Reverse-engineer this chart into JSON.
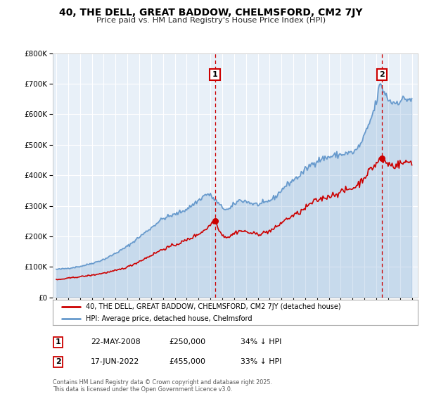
{
  "title": "40, THE DELL, GREAT BADDOW, CHELMSFORD, CM2 7JY",
  "subtitle": "Price paid vs. HM Land Registry's House Price Index (HPI)",
  "legend_line1": "40, THE DELL, GREAT BADDOW, CHELMSFORD, CM2 7JY (detached house)",
  "legend_line2": "HPI: Average price, detached house, Chelmsford",
  "footer": "Contains HM Land Registry data © Crown copyright and database right 2025.\nThis data is licensed under the Open Government Licence v3.0.",
  "annotation1_label": "1",
  "annotation1_date": "22-MAY-2008",
  "annotation1_price": "£250,000",
  "annotation1_hpi": "34% ↓ HPI",
  "annotation2_label": "2",
  "annotation2_date": "17-JUN-2022",
  "annotation2_price": "£455,000",
  "annotation2_hpi": "33% ↓ HPI",
  "marker1_x": 2008.38,
  "marker1_y": 250000,
  "marker2_x": 2022.46,
  "marker2_y": 455000,
  "red_color": "#cc0000",
  "blue_color": "#6699cc",
  "marker_box_color": "#cc0000",
  "background_color": "#ffffff",
  "plot_bg_color": "#e8f0f8",
  "grid_color": "#ffffff",
  "ylim": [
    0,
    800000
  ],
  "xlim": [
    1994.7,
    2025.5
  ]
}
